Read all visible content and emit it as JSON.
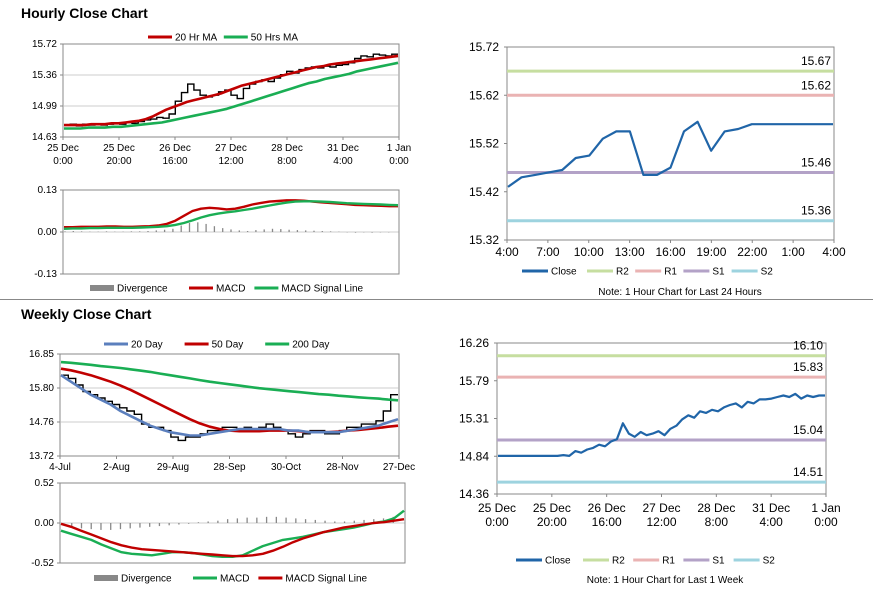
{
  "hourly_title": "Hourly Close Chart",
  "weekly_title": "Weekly Close Chart",
  "colors": {
    "price": "#000000",
    "red_ma": "#c00000",
    "green_ma": "#1aae54",
    "blue_ma": "#5b7fbd",
    "close": "#2065a8",
    "r2": "#c6dea0",
    "r1": "#eab3b3",
    "s1": "#b3a2c7",
    "s2": "#9dd3df",
    "divergence": "#888888"
  },
  "chart_data": [
    {
      "id": "hourly_price",
      "type": "line",
      "legend": [
        "20 Hr MA",
        "50 Hrs MA"
      ],
      "legend_position": "top",
      "x_tick_labels": [
        "25 Dec\n0:00",
        "25 Dec\n20:00",
        "26 Dec\n16:00",
        "27 Dec\n12:00",
        "28 Dec\n8:00",
        "31 Dec\n4:00",
        "1 Jan\n0:00"
      ],
      "y_tick_labels": [
        "15.72",
        "15.36",
        "14.99",
        "14.63"
      ],
      "ylim": [
        14.63,
        15.72
      ],
      "series": [
        {
          "name": "Price",
          "role": "price",
          "values": [
            14.77,
            14.78,
            14.76,
            14.78,
            14.77,
            14.78,
            14.77,
            14.78,
            14.79,
            14.78,
            14.8,
            14.79,
            14.81,
            14.83,
            14.84,
            14.86,
            14.85,
            14.9,
            15.05,
            15.15,
            15.25,
            15.18,
            15.12,
            15.1,
            15.12,
            15.16,
            15.18,
            15.12,
            15.08,
            15.2,
            15.25,
            15.28,
            15.3,
            15.28,
            15.32,
            15.36,
            15.4,
            15.38,
            15.42,
            15.44,
            15.45,
            15.44,
            15.46,
            15.45,
            15.47,
            15.48,
            15.5,
            15.55,
            15.58,
            15.57,
            15.6,
            15.59,
            15.58,
            15.6
          ]
        },
        {
          "name": "20 Hr MA",
          "role": "red_ma",
          "values": [
            14.77,
            14.77,
            14.77,
            14.77,
            14.78,
            14.78,
            14.78,
            14.79,
            14.79,
            14.8,
            14.81,
            14.82,
            14.84,
            14.87,
            14.91,
            14.95,
            14.98,
            15.01,
            15.04,
            15.06,
            15.08,
            15.1,
            15.12,
            15.14,
            15.17,
            15.2,
            15.23,
            15.25,
            15.27,
            15.29,
            15.31,
            15.33,
            15.35,
            15.37,
            15.39,
            15.41,
            15.43,
            15.45,
            15.46,
            15.48,
            15.49,
            15.5,
            15.51,
            15.52,
            15.53,
            15.54,
            15.55,
            15.56,
            15.57,
            15.58
          ]
        },
        {
          "name": "50 Hrs MA",
          "role": "green_ma",
          "values": [
            14.73,
            14.73,
            14.73,
            14.74,
            14.74,
            14.74,
            14.75,
            14.75,
            14.76,
            14.77,
            14.78,
            14.79,
            14.8,
            14.82,
            14.84,
            14.86,
            14.88,
            14.9,
            14.92,
            14.94,
            14.96,
            14.99,
            15.02,
            15.05,
            15.08,
            15.11,
            15.14,
            15.17,
            15.2,
            15.23,
            15.26,
            15.28,
            15.31,
            15.33,
            15.35,
            15.37,
            15.4,
            15.42,
            15.44,
            15.46,
            15.48,
            15.5
          ]
        }
      ]
    },
    {
      "id": "hourly_macd",
      "type": "line",
      "legend": [
        "Divergence",
        "MACD",
        "MACD Signal Line"
      ],
      "legend_position": "bottom",
      "y_tick_labels": [
        "0.13",
        "0.00",
        "-0.13"
      ],
      "ylim": [
        -0.13,
        0.13
      ],
      "series": [
        {
          "name": "Divergence",
          "role": "divergence",
          "values": [
            0.002,
            0.003,
            0.002,
            0.001,
            0.001,
            0.002,
            0.001,
            0.001,
            0.002,
            0.002,
            0.003,
            0.005,
            0.007,
            0.01,
            0.02,
            0.028,
            0.03,
            0.025,
            0.018,
            0.012,
            0.008,
            0.005,
            0.003,
            0.006,
            0.008,
            0.01,
            0.009,
            0.007,
            0.006,
            0.005,
            0.004,
            0.003,
            0.002,
            0.001,
            -0.001,
            -0.002,
            -0.001,
            -0.002,
            -0.001,
            -0.001
          ]
        },
        {
          "name": "MACD",
          "role": "red_ma",
          "values": [
            0.015,
            0.015,
            0.016,
            0.016,
            0.016,
            0.017,
            0.017,
            0.016,
            0.016,
            0.017,
            0.018,
            0.02,
            0.025,
            0.035,
            0.05,
            0.065,
            0.072,
            0.075,
            0.073,
            0.07,
            0.072,
            0.078,
            0.085,
            0.09,
            0.094,
            0.096,
            0.098,
            0.098,
            0.097,
            0.094,
            0.092,
            0.09,
            0.088,
            0.086,
            0.084,
            0.083,
            0.082,
            0.081,
            0.08,
            0.08
          ]
        },
        {
          "name": "MACD Signal Line",
          "role": "green_ma",
          "values": [
            0.01,
            0.011,
            0.011,
            0.012,
            0.012,
            0.013,
            0.013,
            0.013,
            0.013,
            0.014,
            0.015,
            0.016,
            0.018,
            0.022,
            0.028,
            0.036,
            0.045,
            0.052,
            0.057,
            0.061,
            0.064,
            0.068,
            0.072,
            0.077,
            0.082,
            0.087,
            0.091,
            0.094,
            0.095,
            0.095,
            0.094,
            0.093,
            0.091,
            0.089,
            0.088,
            0.087,
            0.086,
            0.085,
            0.084,
            0.083
          ]
        }
      ]
    },
    {
      "id": "hourly_close",
      "type": "line",
      "legend": [
        "Close",
        "R2",
        "R1",
        "S1",
        "S2"
      ],
      "legend_position": "bottom",
      "x_tick_labels": [
        "4:00",
        "7:00",
        "10:00",
        "13:00",
        "16:00",
        "19:00",
        "22:00",
        "1:00",
        "4:00"
      ],
      "y_tick_labels": [
        "15.72",
        "15.62",
        "15.52",
        "15.42",
        "15.32"
      ],
      "ylim": [
        15.32,
        15.72
      ],
      "levels": [
        {
          "name": "R2",
          "value": 15.67,
          "label": "15.67",
          "role": "r2"
        },
        {
          "name": "R1",
          "value": 15.62,
          "label": "15.62",
          "role": "r1"
        },
        {
          "name": "S1",
          "value": 15.46,
          "label": "15.46",
          "role": "s1"
        },
        {
          "name": "S2",
          "value": 15.36,
          "label": "15.36",
          "role": "s2"
        }
      ],
      "close": [
        15.43,
        15.45,
        15.455,
        15.46,
        15.465,
        15.49,
        15.495,
        15.53,
        15.545,
        15.545,
        15.455,
        15.455,
        15.47,
        15.545,
        15.565,
        15.505,
        15.545,
        15.55,
        15.56,
        15.56,
        15.56,
        15.56,
        15.56,
        15.56,
        15.56
      ],
      "note": "Note: 1 Hour Chart for Last 24 Hours"
    },
    {
      "id": "weekly_price",
      "type": "line",
      "legend": [
        "20 Day",
        "50 Day",
        "200 Day"
      ],
      "legend_position": "top",
      "x_tick_labels": [
        "4-Jul",
        "2-Aug",
        "29-Aug",
        "28-Sep",
        "30-Oct",
        "28-Nov",
        "27-Dec"
      ],
      "y_tick_labels": [
        "16.85",
        "15.80",
        "14.76",
        "13.72"
      ],
      "ylim": [
        13.72,
        16.85
      ],
      "series": [
        {
          "name": "Price",
          "role": "price",
          "values": [
            16.2,
            16.1,
            15.9,
            15.7,
            15.6,
            15.5,
            15.4,
            15.3,
            15.2,
            15.1,
            15.0,
            14.7,
            14.6,
            14.6,
            14.5,
            14.3,
            14.2,
            14.3,
            14.3,
            14.4,
            14.5,
            14.5,
            14.6,
            14.6,
            14.5,
            14.6,
            14.5,
            14.6,
            14.7,
            14.6,
            14.5,
            14.4,
            14.3,
            14.4,
            14.5,
            14.5,
            14.4,
            14.4,
            14.5,
            14.6,
            14.6,
            14.7,
            14.7,
            14.8,
            15.1,
            15.6
          ]
        },
        {
          "name": "20 Day",
          "role": "blue_ma",
          "values": [
            16.2,
            16.0,
            15.8,
            15.6,
            15.45,
            15.3,
            15.1,
            14.95,
            14.8,
            14.65,
            14.55,
            14.45,
            14.4,
            14.35,
            14.35,
            14.4,
            14.45,
            14.5,
            14.55,
            14.55,
            14.55,
            14.55,
            14.55,
            14.5,
            14.5,
            14.45,
            14.45,
            14.45,
            14.45,
            14.5,
            14.55,
            14.6,
            14.65,
            14.75,
            14.85
          ]
        },
        {
          "name": "50 Day",
          "role": "red_ma",
          "values": [
            16.4,
            16.35,
            16.28,
            16.2,
            16.1,
            16.0,
            15.88,
            15.75,
            15.6,
            15.45,
            15.3,
            15.15,
            15.0,
            14.85,
            14.72,
            14.62,
            14.55,
            14.5,
            14.48,
            14.48,
            14.48,
            14.5,
            14.5,
            14.5,
            14.48,
            14.45,
            14.45,
            14.45,
            14.47,
            14.5,
            14.52,
            14.55,
            14.58,
            14.62,
            14.65
          ]
        },
        {
          "name": "200 Day",
          "role": "green_ma",
          "values": [
            16.6,
            16.58,
            16.55,
            16.52,
            16.48,
            16.45,
            16.42,
            16.38,
            16.34,
            16.3,
            16.25,
            16.2,
            16.15,
            16.1,
            16.05,
            16.0,
            15.96,
            15.92,
            15.88,
            15.84,
            15.8,
            15.77,
            15.74,
            15.71,
            15.68,
            15.65,
            15.62,
            15.6,
            15.57,
            15.55,
            15.52,
            15.5,
            15.48,
            15.45,
            15.43
          ]
        }
      ]
    },
    {
      "id": "weekly_macd",
      "type": "line",
      "legend": [
        "Divergence",
        "MACD",
        "MACD Signal Line"
      ],
      "legend_position": "bottom",
      "y_tick_labels": [
        "0.52",
        "0.00",
        "-0.52"
      ],
      "ylim": [
        -0.52,
        0.52
      ],
      "series": [
        {
          "name": "Divergence",
          "role": "divergence",
          "values": [
            -0.02,
            -0.05,
            -0.07,
            -0.08,
            -0.09,
            -0.09,
            -0.08,
            -0.07,
            -0.06,
            -0.05,
            -0.04,
            -0.03,
            -0.02,
            -0.01,
            0.01,
            0.02,
            0.03,
            0.05,
            0.06,
            0.07,
            0.07,
            0.08,
            0.08,
            0.07,
            0.06,
            0.05,
            0.04,
            0.03,
            0.02,
            0.02,
            0.03,
            0.04,
            0.05,
            0.06,
            0.08
          ]
        },
        {
          "name": "MACD",
          "role": "green_ma",
          "values": [
            -0.1,
            -0.14,
            -0.18,
            -0.22,
            -0.28,
            -0.33,
            -0.38,
            -0.4,
            -0.41,
            -0.42,
            -0.4,
            -0.38,
            -0.38,
            -0.39,
            -0.41,
            -0.43,
            -0.44,
            -0.44,
            -0.42,
            -0.36,
            -0.3,
            -0.26,
            -0.22,
            -0.2,
            -0.18,
            -0.15,
            -0.12,
            -0.1,
            -0.08,
            -0.06,
            -0.03,
            0.0,
            0.02,
            0.06,
            0.16
          ]
        },
        {
          "name": "MACD Signal Line",
          "role": "red_ma",
          "values": [
            -0.01,
            -0.05,
            -0.1,
            -0.15,
            -0.2,
            -0.25,
            -0.29,
            -0.32,
            -0.34,
            -0.35,
            -0.36,
            -0.37,
            -0.38,
            -0.39,
            -0.4,
            -0.41,
            -0.42,
            -0.43,
            -0.43,
            -0.42,
            -0.4,
            -0.36,
            -0.31,
            -0.25,
            -0.2,
            -0.16,
            -0.12,
            -0.09,
            -0.06,
            -0.04,
            -0.02,
            0.0,
            0.01,
            0.03,
            0.05
          ]
        }
      ]
    },
    {
      "id": "weekly_close",
      "type": "line",
      "legend": [
        "Close",
        "R2",
        "R1",
        "S1",
        "S2"
      ],
      "legend_position": "bottom",
      "x_tick_labels": [
        "25 Dec\n0:00",
        "25 Dec\n20:00",
        "26 Dec\n16:00",
        "27 Dec\n12:00",
        "28 Dec\n8:00",
        "31 Dec\n4:00",
        "1 Jan\n0:00"
      ],
      "y_tick_labels": [
        "16.26",
        "15.79",
        "15.31",
        "14.84",
        "14.36"
      ],
      "ylim": [
        14.36,
        16.26
      ],
      "levels": [
        {
          "name": "R2",
          "value": 16.1,
          "label": "16.10",
          "role": "r2"
        },
        {
          "name": "R1",
          "value": 15.83,
          "label": "15.83",
          "role": "r1"
        },
        {
          "name": "S1",
          "value": 15.04,
          "label": "15.04",
          "role": "s1"
        },
        {
          "name": "S2",
          "value": 14.51,
          "label": "14.51",
          "role": "s2"
        }
      ],
      "close": [
        14.84,
        14.84,
        14.84,
        14.84,
        14.84,
        14.84,
        14.84,
        14.84,
        14.84,
        14.84,
        14.84,
        14.85,
        14.84,
        14.9,
        14.88,
        14.92,
        14.94,
        14.98,
        14.96,
        15.02,
        15.05,
        15.25,
        15.12,
        15.08,
        15.14,
        15.1,
        15.12,
        15.15,
        15.1,
        15.18,
        15.22,
        15.3,
        15.35,
        15.32,
        15.4,
        15.38,
        15.42,
        15.4,
        15.45,
        15.48,
        15.5,
        15.45,
        15.52,
        15.5,
        15.55,
        15.55,
        15.56,
        15.58,
        15.6,
        15.58,
        15.62,
        15.56,
        15.6,
        15.58,
        15.6,
        15.6
      ],
      "note": "Note: 1 Hour Chart for Last 1 Week"
    }
  ]
}
